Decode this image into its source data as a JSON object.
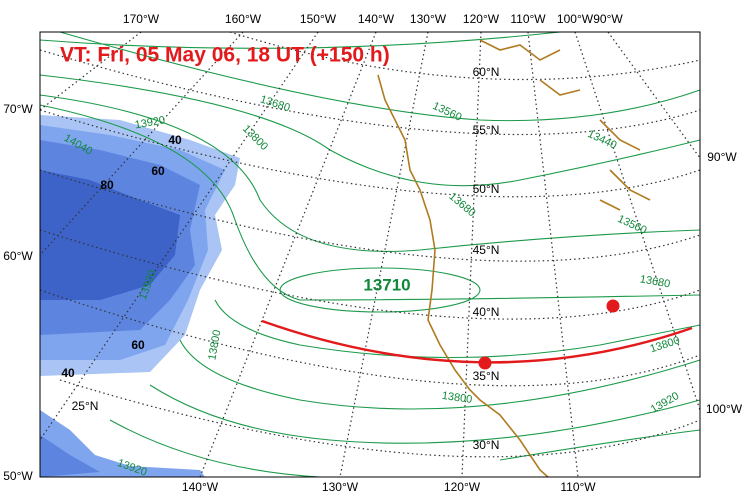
{
  "title": "VT:  Fri, 05 May 06, 18 UT (+150 h)",
  "lon_labels_top": [
    "170°W",
    "160°W",
    "150°W",
    "140°W",
    "130°W",
    "120°W",
    "110°W",
    "100°W",
    "90°W"
  ],
  "lon_labels_left": [
    "70°W",
    "60°W",
    "50°W"
  ],
  "lon_labels_right": [
    "90°W",
    "100°W"
  ],
  "lon_labels_bottom": [
    "140°W",
    "130°W",
    "120°W",
    "110°W"
  ],
  "lat_labels": [
    "60°N",
    "55°N",
    "50°N",
    "45°N",
    "40°N",
    "35°N",
    "30°N",
    "25°N"
  ],
  "contour_labels": [
    "13680",
    "13560",
    "13440",
    "13920",
    "13800",
    "13680",
    "13560",
    "13680",
    "13800",
    "13920",
    "13800",
    "13920",
    "13800",
    "13920",
    "14040"
  ],
  "shade_labels": [
    "40",
    "80",
    "60",
    "60",
    "40"
  ],
  "center_label": "13710"
}
